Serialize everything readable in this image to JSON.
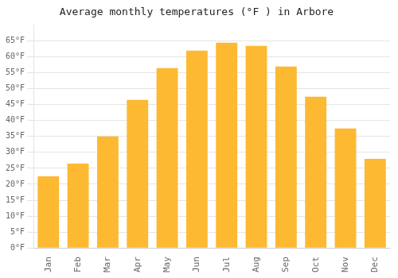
{
  "chart_data": {
    "type": "bar",
    "title": "Average monthly temperatures (°F ) in Arbore",
    "categories": [
      "Jan",
      "Feb",
      "Mar",
      "Apr",
      "May",
      "Jun",
      "Jul",
      "Aug",
      "Sep",
      "Oct",
      "Nov",
      "Dec"
    ],
    "values": [
      22.5,
      26.5,
      35.0,
      46.5,
      56.5,
      62.0,
      64.5,
      63.5,
      57.0,
      47.5,
      37.5,
      28.0
    ],
    "color": "#FDB931",
    "ylim": [
      0,
      70
    ],
    "yticks": [
      {
        "value": 0,
        "label": "0°F"
      },
      {
        "value": 5,
        "label": "5°F"
      },
      {
        "value": 10,
        "label": "10°F"
      },
      {
        "value": 15,
        "label": "15°F"
      },
      {
        "value": 20,
        "label": "20°F"
      },
      {
        "value": 25,
        "label": "25°F"
      },
      {
        "value": 30,
        "label": "30°F"
      },
      {
        "value": 35,
        "label": "35°F"
      },
      {
        "value": 40,
        "label": "40°F"
      },
      {
        "value": 45,
        "label": "45°F"
      },
      {
        "value": 50,
        "label": "50°F"
      },
      {
        "value": 55,
        "label": "55°F"
      },
      {
        "value": 60,
        "label": "60°F"
      },
      {
        "value": 65,
        "label": "65°F"
      }
    ],
    "grid": true
  }
}
